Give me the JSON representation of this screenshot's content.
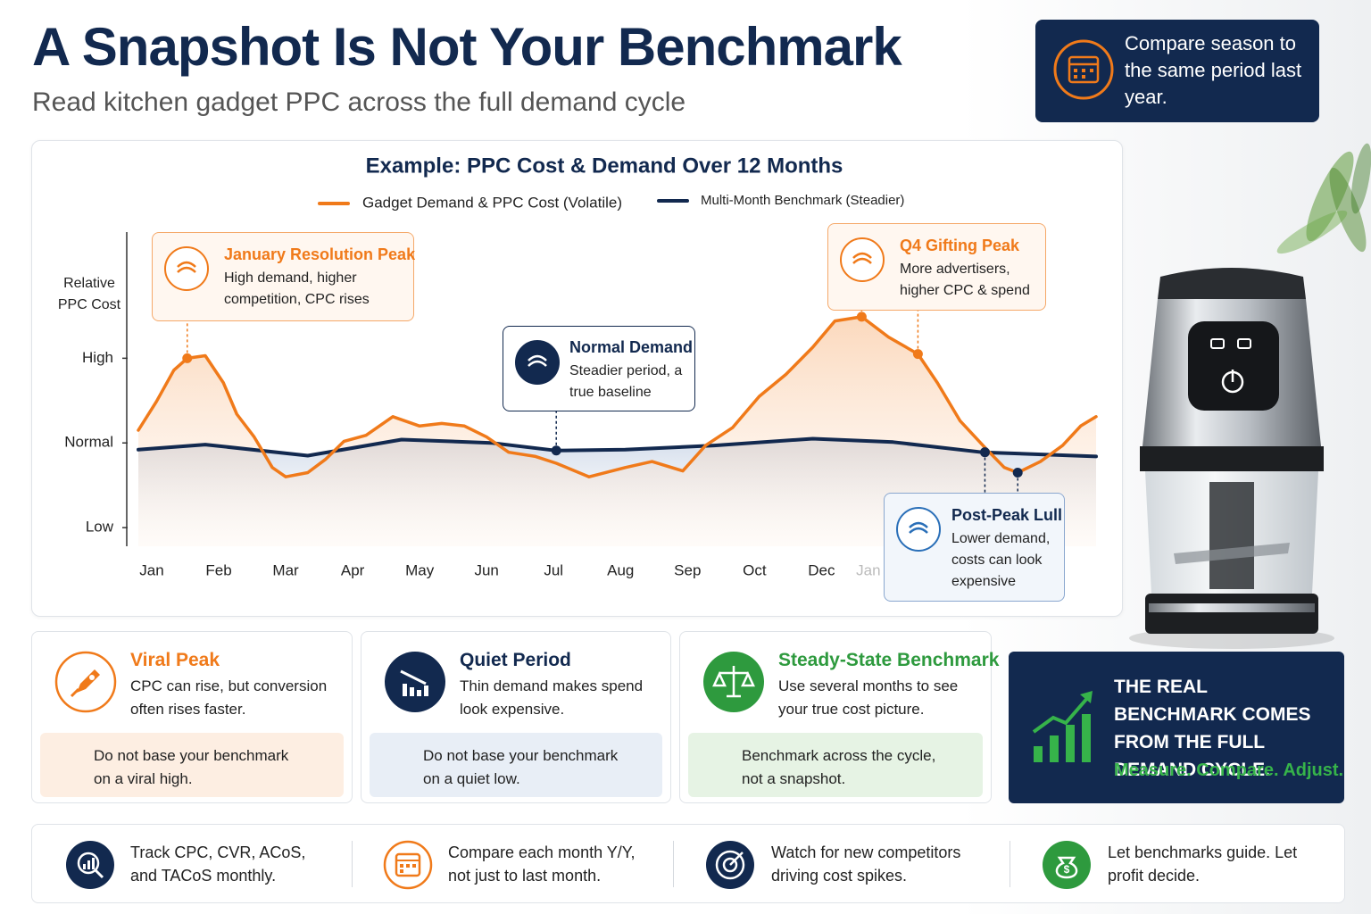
{
  "header": {
    "title": "A Snapshot Is Not Your Benchmark",
    "subtitle": "Read kitchen gadget PPC across the full demand cycle"
  },
  "callout": "Compare season to the same period last year.",
  "chart_data": {
    "type": "line",
    "title": "Example: PPC Cost & Demand Over 12 Months",
    "y_label": "Relative PPC Cost",
    "xlim": [
      -0.2,
      14.1
    ],
    "ylim": [
      0.78,
      4.49
    ],
    "xticks": [
      {
        "value": 0,
        "label": "Jan"
      },
      {
        "value": 1,
        "label": "Feb"
      },
      {
        "value": 2,
        "label": "Mar"
      },
      {
        "value": 3,
        "label": "Apr"
      },
      {
        "value": 4,
        "label": "May"
      },
      {
        "value": 5,
        "label": "Jun"
      },
      {
        "value": 6,
        "label": "Jul"
      },
      {
        "value": 7,
        "label": "Aug"
      },
      {
        "value": 8,
        "label": "Sep"
      },
      {
        "value": 9,
        "label": "Oct"
      },
      {
        "value": 10,
        "label": "Dec"
      },
      {
        "value": 10.7,
        "label": "Jan"
      }
    ],
    "yticks": [
      {
        "value": 1,
        "label": "Low"
      },
      {
        "value": 2,
        "label": "Normal"
      },
      {
        "value": 3,
        "label": "High"
      }
    ],
    "series": [
      {
        "name": "Gadget Demand & PPC Cost (Volatile)",
        "color": "#f07a1a",
        "x": [
          -0.2,
          0.07,
          0.33,
          0.53,
          0.8,
          1.07,
          1.27,
          1.53,
          1.8,
          2.0,
          2.33,
          2.6,
          2.87,
          3.2,
          3.6,
          4.0,
          4.33,
          4.67,
          5.0,
          5.33,
          5.73,
          6.04,
          6.53,
          7.07,
          7.47,
          7.93,
          8.27,
          8.67,
          9.07,
          9.47,
          9.87,
          10.2,
          10.6,
          11.0,
          11.44,
          11.73,
          12.07,
          12.47,
          12.73,
          12.93,
          13.27,
          13.6,
          13.87,
          14.1
        ],
        "values": [
          2.15,
          2.49,
          2.86,
          3.0,
          3.03,
          2.71,
          2.34,
          2.07,
          1.71,
          1.6,
          1.65,
          1.81,
          2.02,
          2.09,
          2.31,
          2.2,
          2.23,
          2.2,
          2.07,
          1.89,
          1.84,
          1.76,
          1.6,
          1.71,
          1.78,
          1.67,
          1.97,
          2.18,
          2.55,
          2.81,
          3.13,
          3.44,
          3.49,
          3.25,
          3.05,
          2.71,
          2.26,
          1.92,
          1.71,
          1.65,
          1.78,
          1.97,
          2.2,
          2.31
        ]
      },
      {
        "name": "Multi-Month Benchmark (Steadier)",
        "color": "#12294f",
        "x": [
          -0.2,
          0.8,
          2.33,
          3.73,
          5.07,
          6.04,
          7.07,
          8.4,
          9.87,
          11.07,
          12.4,
          14.1
        ],
        "values": [
          1.92,
          1.98,
          1.85,
          2.04,
          2.0,
          1.91,
          1.92,
          1.97,
          2.05,
          2.01,
          1.89,
          1.84
        ]
      }
    ],
    "annotations": [
      {
        "title": "January Resolution Peak",
        "text": "High demand, higher competition, CPC rises",
        "points": [
          {
            "x": 0.53,
            "y": 3.0
          }
        ]
      },
      {
        "title": "Normal Demand",
        "text": "Steadier period, a true baseline",
        "points": [
          {
            "x": 6.04,
            "y": 1.91
          }
        ]
      },
      {
        "title": "Q4 Gifting Peak",
        "text": "More advertisers, higher CPC & spend",
        "points": [
          {
            "x": 10.6,
            "y": 3.49
          },
          {
            "x": 11.44,
            "y": 3.05
          }
        ]
      },
      {
        "title": "Post-Peak Lull",
        "text": "Lower demand, costs can look expensive",
        "points": [
          {
            "x": 12.93,
            "y": 1.65
          },
          {
            "x": 12.44,
            "y": 1.89
          }
        ]
      }
    ]
  },
  "cards": [
    {
      "title": "Viral Peak",
      "text": "CPC can rise, but conversion often rises faster.",
      "note": "Do not base your benchmark on a viral high."
    },
    {
      "title": "Quiet Period",
      "text": "Thin demand makes spend look expensive.",
      "note": "Do not base your benchmark on a quiet low."
    },
    {
      "title": "Steady-State Benchmark",
      "text": "Use several months to see your true cost picture.",
      "note": "Benchmark across the cycle, not a snapshot."
    }
  ],
  "benchmark_box": {
    "text": "THE REAL BENCHMARK COMES FROM THE FULL DEMAND CYCLE.",
    "tagline": "Measure. Compare. Adjust."
  },
  "tips": [
    "Track CPC, CVR, ACoS, and TACoS monthly.",
    "Compare each month Y/Y, not just to last month.",
    "Watch for new competitors driving cost spikes.",
    "Let benchmarks guide. Let profit decide."
  ]
}
